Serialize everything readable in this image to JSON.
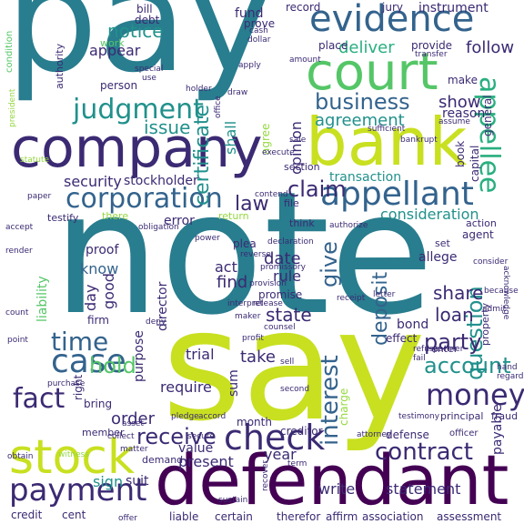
{
  "palette": {
    "viridis_purple": "#440154",
    "deep_indigo": "#3b2a73",
    "blue": "#33638d",
    "teal": "#287d8e",
    "sea": "#21918c",
    "green_teal": "#29af7f",
    "green": "#55c667",
    "lime": "#95d840",
    "yellow_green": "#c8e020",
    "yellow": "#dde318",
    "background": "#ffffff"
  },
  "words": [
    {
      "id": "pay",
      "text": "pay",
      "color": "#287d8e"
    },
    {
      "id": "note",
      "text": "note",
      "color": "#287d8e"
    },
    {
      "id": "say",
      "text": "say",
      "color": "#c8e020"
    },
    {
      "id": "defendant",
      "text": "defendant",
      "color": "#440154"
    },
    {
      "id": "company",
      "text": "company",
      "color": "#3b2a73"
    },
    {
      "id": "bank",
      "text": "bank",
      "color": "#c8e020"
    },
    {
      "id": "court",
      "text": "court",
      "color": "#55c667"
    },
    {
      "id": "evidence",
      "text": "evidence",
      "color": "#33638d"
    },
    {
      "id": "stock",
      "text": "stock",
      "color": "#c8e020"
    },
    {
      "id": "plaintiff",
      "text": "plaintiff",
      "color": "#21918c"
    },
    {
      "id": "appellant",
      "text": "appellant",
      "color": "#33638d"
    },
    {
      "id": "appellee",
      "text": "appellee",
      "color": "#29af7f"
    },
    {
      "id": "corporation",
      "text": "corporation",
      "color": "#33638d"
    },
    {
      "id": "judgment",
      "text": "judgment",
      "color": "#21918c"
    },
    {
      "id": "business",
      "text": "business",
      "color": "#33638d"
    },
    {
      "id": "case",
      "text": "case",
      "color": "#33638d"
    },
    {
      "id": "check",
      "text": "check",
      "color": "#3b2a73"
    },
    {
      "id": "money",
      "text": "money",
      "color": "#3b2a73"
    },
    {
      "id": "payment",
      "text": "payment",
      "color": "#3b2a73"
    },
    {
      "id": "contract",
      "text": "contract",
      "color": "#3b2a73"
    },
    {
      "id": "certificate",
      "text": "certificate",
      "color": "#21918c"
    },
    {
      "id": "time",
      "text": "time",
      "color": "#33638d"
    },
    {
      "id": "fact",
      "text": "fact",
      "color": "#3b2a73"
    },
    {
      "id": "receive",
      "text": "receive",
      "color": "#3b2a73"
    },
    {
      "id": "interest",
      "text": "interest",
      "color": "#33638d"
    },
    {
      "id": "account",
      "text": "account",
      "color": "#21918c"
    },
    {
      "id": "question",
      "text": "question",
      "color": "#21918c"
    },
    {
      "id": "deposit",
      "text": "deposit",
      "color": "#33638d"
    },
    {
      "id": "claim",
      "text": "claim",
      "color": "#3b2a73"
    },
    {
      "id": "hold",
      "text": "hold",
      "color": "#55c667"
    },
    {
      "id": "give",
      "text": "give",
      "color": "#33638d"
    },
    {
      "id": "issue",
      "text": "issue",
      "color": "#21918c"
    },
    {
      "id": "notice",
      "text": "notice",
      "color": "#21918c"
    },
    {
      "id": "opinion",
      "text": "opinion",
      "color": "#3b2a73"
    },
    {
      "id": "agreement",
      "text": "agreement",
      "color": "#21918c"
    },
    {
      "id": "show",
      "text": "show",
      "color": "#3b2a73"
    },
    {
      "id": "deliver",
      "text": "deliver",
      "color": "#29af7f"
    },
    {
      "id": "follow",
      "text": "follow",
      "color": "#3b2a73"
    },
    {
      "id": "party",
      "text": "party",
      "color": "#3b2a73"
    },
    {
      "id": "order",
      "text": "order",
      "color": "#3b2a73"
    },
    {
      "id": "share",
      "text": "share",
      "color": "#3b2a73"
    },
    {
      "id": "loan",
      "text": "loan",
      "color": "#3b2a73"
    },
    {
      "id": "state",
      "text": "state",
      "color": "#3b2a73"
    },
    {
      "id": "law",
      "text": "law",
      "color": "#3b2a73"
    },
    {
      "id": "transaction",
      "text": "transaction",
      "color": "#21918c"
    },
    {
      "id": "consideration",
      "text": "consideration",
      "color": "#21918c"
    },
    {
      "id": "security",
      "text": "security",
      "color": "#3b2a73"
    },
    {
      "id": "stockholder",
      "text": "stockholder",
      "color": "#3b2a73"
    },
    {
      "id": "appear",
      "text": "appear",
      "color": "#3b2a73"
    },
    {
      "id": "shall",
      "text": "shall",
      "color": "#21918c"
    },
    {
      "id": "sum",
      "text": "sum",
      "color": "#3b2a73"
    },
    {
      "id": "date",
      "text": "date",
      "color": "#3b2a73"
    },
    {
      "id": "find",
      "text": "find",
      "color": "#3b2a73"
    },
    {
      "id": "act",
      "text": "act",
      "color": "#3b2a73"
    },
    {
      "id": "rule",
      "text": "rule",
      "color": "#3b2a73"
    },
    {
      "id": "take",
      "text": "take",
      "color": "#3b2a73"
    },
    {
      "id": "year",
      "text": "year",
      "color": "#3b2a73"
    },
    {
      "id": "trial",
      "text": "trial",
      "color": "#3b2a73"
    },
    {
      "id": "day",
      "text": "day",
      "color": "#3b2a73"
    },
    {
      "id": "good",
      "text": "good",
      "color": "#3b2a73"
    },
    {
      "id": "know",
      "text": "know",
      "color": "#33638d"
    },
    {
      "id": "director",
      "text": "director",
      "color": "#3b2a73"
    },
    {
      "id": "purpose",
      "text": "purpose",
      "color": "#3b2a73"
    },
    {
      "id": "require",
      "text": "require",
      "color": "#3b2a73"
    },
    {
      "id": "statement",
      "text": "statement",
      "color": "#3b2a73"
    },
    {
      "id": "write",
      "text": "write",
      "color": "#3b2a73"
    },
    {
      "id": "present",
      "text": "present",
      "color": "#3b2a73"
    },
    {
      "id": "value",
      "text": "value",
      "color": "#3b2a73"
    },
    {
      "id": "sign",
      "text": "sign",
      "color": "#21918c"
    },
    {
      "id": "suit",
      "text": "suit",
      "color": "#3b2a73"
    },
    {
      "id": "certain",
      "text": "certain",
      "color": "#3b2a73"
    },
    {
      "id": "liable",
      "text": "liable",
      "color": "#3b2a73"
    },
    {
      "id": "credit",
      "text": "credit",
      "color": "#3b2a73"
    },
    {
      "id": "cent",
      "text": "cent",
      "color": "#3b2a73"
    },
    {
      "id": "person",
      "text": "person",
      "color": "#3b2a73"
    },
    {
      "id": "fund",
      "text": "fund",
      "color": "#3b2a73"
    },
    {
      "id": "record",
      "text": "record",
      "color": "#3b2a73"
    },
    {
      "id": "instrument",
      "text": "instrument",
      "color": "#3b2a73"
    },
    {
      "id": "bill",
      "text": "bill",
      "color": "#3b2a73"
    },
    {
      "id": "debt",
      "text": "debt",
      "color": "#3b2a73"
    },
    {
      "id": "jury",
      "text": "jury",
      "color": "#3b2a73"
    },
    {
      "id": "prove",
      "text": "prove",
      "color": "#3b2a73"
    },
    {
      "id": "place",
      "text": "place",
      "color": "#3b2a73"
    },
    {
      "id": "provide",
      "text": "provide",
      "color": "#3b2a73"
    },
    {
      "id": "make",
      "text": "make",
      "color": "#3b2a73"
    },
    {
      "id": "reason",
      "text": "reason",
      "color": "#3b2a73"
    },
    {
      "id": "work",
      "text": "work",
      "color": "#55c667"
    },
    {
      "id": "authority",
      "text": "authority",
      "color": "#3b2a73"
    },
    {
      "id": "condition",
      "text": "condition",
      "color": "#55c667"
    },
    {
      "id": "agree",
      "text": "agree",
      "color": "#95d840"
    },
    {
      "id": "section",
      "text": "section",
      "color": "#3b2a73"
    },
    {
      "id": "error",
      "text": "error",
      "color": "#3b2a73"
    },
    {
      "id": "testify",
      "text": "testify",
      "color": "#3b2a73"
    },
    {
      "id": "there",
      "text": "there",
      "color": "#95d840"
    },
    {
      "id": "return",
      "text": "return",
      "color": "#95d840"
    },
    {
      "id": "think",
      "text": "think",
      "color": "#3b2a73"
    },
    {
      "id": "proof",
      "text": "proof",
      "color": "#3b2a73"
    },
    {
      "id": "plea",
      "text": "plea",
      "color": "#3b2a73"
    },
    {
      "id": "allege",
      "text": "allege",
      "color": "#3b2a73"
    },
    {
      "id": "set",
      "text": "set",
      "color": "#3b2a73"
    },
    {
      "id": "agent",
      "text": "agent",
      "color": "#3b2a73"
    },
    {
      "id": "action",
      "text": "action",
      "color": "#3b2a73"
    },
    {
      "id": "promise",
      "text": "promise",
      "color": "#3b2a73"
    },
    {
      "id": "bond",
      "text": "bond",
      "color": "#3b2a73"
    },
    {
      "id": "effect",
      "text": "effect",
      "color": "#3b2a73"
    },
    {
      "id": "enter",
      "text": "enter",
      "color": "#3b2a73"
    },
    {
      "id": "charge",
      "text": "charge",
      "color": "#95d840"
    },
    {
      "id": "defense",
      "text": "defense",
      "color": "#3b2a73"
    },
    {
      "id": "payable",
      "text": "payable",
      "color": "#3b2a73"
    },
    {
      "id": "assessment",
      "text": "assessment",
      "color": "#3b2a73"
    },
    {
      "id": "association",
      "text": "association",
      "color": "#3b2a73"
    },
    {
      "id": "affirm",
      "text": "affirm",
      "color": "#3b2a73"
    },
    {
      "id": "therefor",
      "text": "therefor",
      "color": "#3b2a73"
    },
    {
      "id": "creditor",
      "text": "creditor",
      "color": "#3b2a73"
    },
    {
      "id": "month",
      "text": "month",
      "color": "#3b2a73"
    },
    {
      "id": "right",
      "text": "right",
      "color": "#3b2a73"
    },
    {
      "id": "bring",
      "text": "bring",
      "color": "#3b2a73"
    },
    {
      "id": "firm",
      "text": "firm",
      "color": "#3b2a73"
    },
    {
      "id": "liability",
      "text": "liability",
      "color": "#55c667"
    },
    {
      "id": "member",
      "text": "member",
      "color": "#3b2a73"
    },
    {
      "id": "demand",
      "text": "demand",
      "color": "#3b2a73"
    },
    {
      "id": "general",
      "text": "general",
      "color": "#3b2a73"
    },
    {
      "id": "book",
      "text": "book",
      "color": "#3b2a73"
    },
    {
      "id": "capital",
      "text": "capital",
      "color": "#3b2a73"
    },
    {
      "id": "property",
      "text": "property",
      "color": "#3b2a73"
    },
    {
      "id": "file",
      "text": "file",
      "color": "#3b2a73"
    },
    {
      "id": "principal",
      "text": "principal",
      "color": "#3b2a73"
    },
    {
      "id": "fraud",
      "text": "fraud",
      "color": "#3b2a73"
    },
    {
      "id": "testimony",
      "text": "testimony",
      "color": "#3b2a73"
    },
    {
      "id": "officer",
      "text": "officer",
      "color": "#3b2a73"
    },
    {
      "id": "attorney",
      "text": "attorney",
      "color": "#3b2a73"
    },
    {
      "id": "purchase",
      "text": "purchase",
      "color": "#3b2a73"
    },
    {
      "id": "collect",
      "text": "collect",
      "color": "#3b2a73"
    },
    {
      "id": "matter",
      "text": "matter",
      "color": "#3b2a73"
    },
    {
      "id": "secure",
      "text": "secure",
      "color": "#3b2a73"
    },
    {
      "id": "sustain",
      "text": "sustain",
      "color": "#3b2a73"
    },
    {
      "id": "recover",
      "text": "recover",
      "color": "#3b2a73"
    },
    {
      "id": "offer",
      "text": "offer",
      "color": "#3b2a73"
    },
    {
      "id": "witness",
      "text": "witness",
      "color": "#95d840"
    },
    {
      "id": "obtain",
      "text": "obtain",
      "color": "#3b2a73"
    },
    {
      "id": "point",
      "text": "point",
      "color": "#3b2a73"
    },
    {
      "id": "count",
      "text": "count",
      "color": "#3b2a73"
    },
    {
      "id": "render",
      "text": "render",
      "color": "#3b2a73"
    },
    {
      "id": "accept",
      "text": "accept",
      "color": "#3b2a73"
    },
    {
      "id": "authorize",
      "text": "authorize",
      "color": "#3b2a73"
    },
    {
      "id": "power",
      "text": "power",
      "color": "#3b2a73"
    },
    {
      "id": "declaration",
      "text": "declaration",
      "color": "#3b2a73"
    },
    {
      "id": "provision",
      "text": "provision",
      "color": "#3b2a73"
    },
    {
      "id": "release",
      "text": "release",
      "color": "#3b2a73"
    },
    {
      "id": "counsel",
      "text": "counsel",
      "color": "#3b2a73"
    },
    {
      "id": "refuse",
      "text": "refuse",
      "color": "#3b2a73"
    },
    {
      "id": "fail",
      "text": "fail",
      "color": "#3b2a73"
    },
    {
      "id": "partner",
      "text": "partner",
      "color": "#3b2a73"
    },
    {
      "id": "hand",
      "text": "hand",
      "color": "#3b2a73"
    },
    {
      "id": "regard",
      "text": "regard",
      "color": "#3b2a73"
    },
    {
      "id": "assume",
      "text": "assume",
      "color": "#3b2a73"
    },
    {
      "id": "sufficient",
      "text": "sufficient",
      "color": "#3b2a73"
    },
    {
      "id": "because",
      "text": "because",
      "color": "#3b2a73"
    },
    {
      "id": "consider",
      "text": "consider",
      "color": "#3b2a73"
    },
    {
      "id": "acknowledge",
      "text": "acknowledge",
      "color": "#3b2a73"
    },
    {
      "id": "admit",
      "text": "admit",
      "color": "#3b2a73"
    },
    {
      "id": "receipt",
      "text": "receipt",
      "color": "#3b2a73"
    },
    {
      "id": "letter",
      "text": "letter",
      "color": "#3b2a73"
    },
    {
      "id": "contend",
      "text": "contend",
      "color": "#3b2a73"
    },
    {
      "id": "paper",
      "text": "paper",
      "color": "#3b2a73"
    },
    {
      "id": "statute",
      "text": "statute",
      "color": "#95d840"
    },
    {
      "id": "president",
      "text": "president",
      "color": "#95d840"
    },
    {
      "id": "second",
      "text": "second",
      "color": "#3b2a73"
    },
    {
      "id": "profit",
      "text": "profit",
      "color": "#3b2a73"
    },
    {
      "id": "sell",
      "text": "sell",
      "color": "#3b2a73"
    },
    {
      "id": "term",
      "text": "term",
      "color": "#3b2a73"
    },
    {
      "id": "asset",
      "text": "asset",
      "color": "#3b2a73"
    },
    {
      "id": "cash",
      "text": "cash",
      "color": "#3b2a73"
    },
    {
      "id": "dollar",
      "text": "dollar",
      "color": "#3b2a73"
    },
    {
      "id": "office",
      "text": "office",
      "color": "#3b2a73"
    },
    {
      "id": "apply",
      "text": "apply",
      "color": "#3b2a73"
    },
    {
      "id": "draw",
      "text": "draw",
      "color": "#3b2a73"
    },
    {
      "id": "holder",
      "text": "holder",
      "color": "#3b2a73"
    },
    {
      "id": "special",
      "text": "special",
      "color": "#3b2a73"
    },
    {
      "id": "use",
      "text": "use",
      "color": "#3b2a73"
    },
    {
      "id": "transfer",
      "text": "transfer",
      "color": "#3b2a73"
    },
    {
      "id": "amount",
      "text": "amount",
      "color": "#3b2a73"
    },
    {
      "id": "pledge",
      "text": "pledge",
      "color": "#3b2a73"
    },
    {
      "id": "accord",
      "text": "accord",
      "color": "#3b2a73"
    },
    {
      "id": "obligation",
      "text": "obligation",
      "color": "#3b2a73"
    },
    {
      "id": "promissory",
      "text": "promissory",
      "color": "#3b2a73"
    },
    {
      "id": "execute",
      "text": "execute",
      "color": "#3b2a73"
    },
    {
      "id": "reverse",
      "text": "reverse",
      "color": "#3b2a73"
    },
    {
      "id": "interpret",
      "text": "interpret",
      "color": "#3b2a73"
    },
    {
      "id": "maker",
      "text": "maker",
      "color": "#3b2a73"
    },
    {
      "id": "deny",
      "text": "deny",
      "color": "#3b2a73"
    },
    {
      "id": "sale",
      "text": "sale",
      "color": "#3b2a73"
    },
    {
      "id": "bankrupt",
      "text": "bankrupt",
      "color": "#3b2a73"
    }
  ]
}
